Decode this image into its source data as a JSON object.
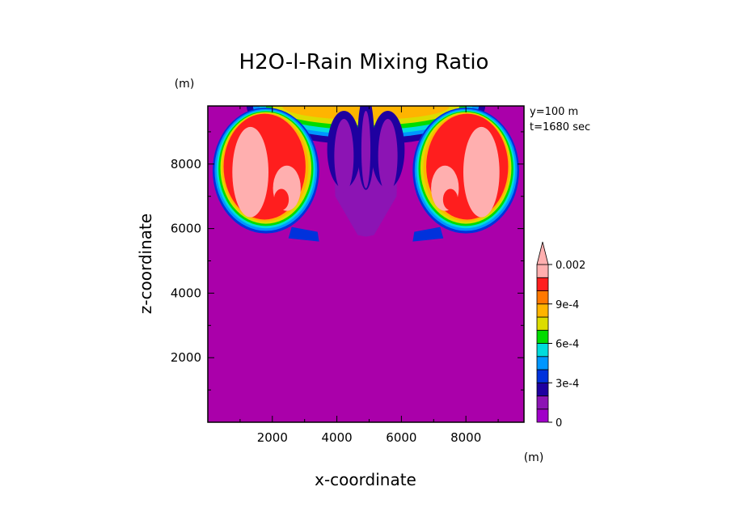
{
  "chart_data": {
    "type": "heatmap",
    "title": "H2O-l-Rain Mixing Ratio",
    "xlabel": "x-coordinate",
    "ylabel": "z-coordinate",
    "x_unit": "(m)",
    "y_unit": "(m)",
    "annotations": [
      "y=100 m",
      "t=1680 sec"
    ],
    "xlim": [
      0,
      9800
    ],
    "ylim": [
      0,
      9800
    ],
    "x_ticks": [
      2000,
      4000,
      6000,
      8000
    ],
    "y_ticks": [
      2000,
      4000,
      6000,
      8000
    ],
    "x_tick_labels": [
      "2000",
      "4000",
      "6000",
      "8000"
    ],
    "y_tick_labels": [
      "2000",
      "4000",
      "6000",
      "8000"
    ],
    "colorbar": {
      "tick_labels": [
        "0",
        "3e-4",
        "6e-4",
        "9e-4",
        "0.002"
      ],
      "tick_values": [
        0,
        0.0003,
        0.0006,
        0.0009,
        0.002
      ],
      "levels": [
        0,
        0.0001,
        0.0002,
        0.0003,
        0.0004,
        0.0005,
        0.0006,
        0.0007,
        0.0008,
        0.0009,
        0.001,
        0.0015,
        0.002
      ],
      "colors": [
        "#a000c8",
        "#8c14b4",
        "#1e00a0",
        "#0032dc",
        "#0096ff",
        "#00dcdc",
        "#00dc00",
        "#dcdc00",
        "#ffb400",
        "#ff7800",
        "#ff1e1e",
        "#ffafaf"
      ],
      "extend": "max"
    },
    "background_color": "#aa00aa"
  }
}
